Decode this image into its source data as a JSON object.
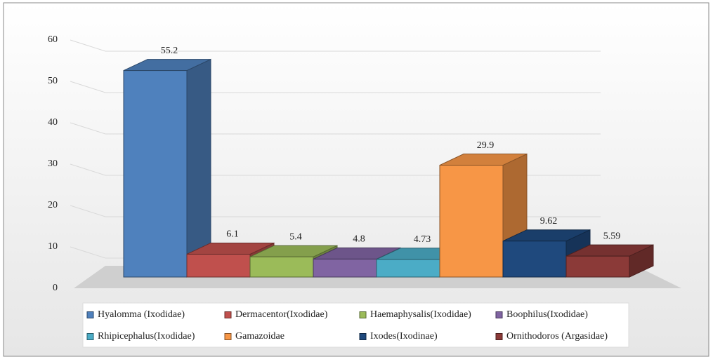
{
  "chart_data": {
    "type": "bar3d",
    "series": [
      {
        "name": "Hyalomma (Ixodidae)",
        "color": "#4f81bd",
        "values": [
          55.2
        ]
      },
      {
        "name": "Dermacentor(Ixodidae)",
        "color": "#c0504d",
        "values": [
          6.1
        ]
      },
      {
        "name": "Haemaphysalis(Ixodidae)",
        "color": "#9bbb59",
        "values": [
          5.4
        ]
      },
      {
        "name": "Boophilus(Ixodidae)",
        "color": "#8064a2",
        "values": [
          4.8
        ]
      },
      {
        "name": "Rhipicephalus(Ixodidae)",
        "color": "#4bacc6",
        "values": [
          4.73
        ]
      },
      {
        "name": "Gamazoidae",
        "color": "#f79646",
        "values": [
          29.9
        ]
      },
      {
        "name": "Ixodes(Ixodinae)",
        "color": "#1f497d",
        "values": [
          9.62
        ]
      },
      {
        "name": "Ornithodoros (Argasidae)",
        "color": "#8b3a38",
        "values": [
          5.59
        ]
      }
    ],
    "ylim": [
      0,
      60
    ],
    "yticks": [
      0,
      10,
      20,
      30,
      40,
      50,
      60
    ],
    "grid": true
  }
}
